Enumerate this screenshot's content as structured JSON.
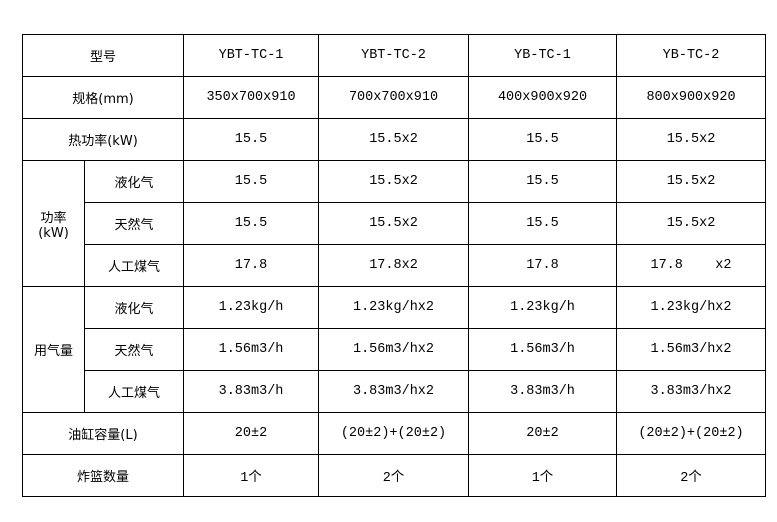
{
  "table": {
    "header": {
      "label": "型号",
      "models": [
        "YBT-TC-1",
        "YBT-TC-2",
        "YB-TC-1",
        "YB-TC-2"
      ]
    },
    "rows": [
      {
        "label": "规格(mm)",
        "values": [
          "350x700x910",
          "700x700x910",
          "400x900x920",
          "800x900x920"
        ]
      },
      {
        "label": "热功率(kW)",
        "values": [
          "15.5",
          "15.5x2",
          "15.5",
          "15.5x2"
        ]
      }
    ],
    "groups": [
      {
        "label": "功率",
        "unit": "(kW)",
        "rows": [
          {
            "label": "液化气",
            "values": [
              "15.5",
              "15.5x2",
              "15.5",
              "15.5x2"
            ]
          },
          {
            "label": "天然气",
            "values": [
              "15.5",
              "15.5x2",
              "15.5",
              "15.5x2"
            ]
          },
          {
            "label": "人工煤气",
            "values": [
              "17.8",
              "17.8x2",
              "17.8",
              "17.8    x2"
            ]
          }
        ]
      },
      {
        "label": "用气量",
        "rows": [
          {
            "label": "液化气",
            "values": [
              "1.23kg/h",
              "1.23kg/hx2",
              "1.23kg/h",
              "1.23kg/hx2"
            ]
          },
          {
            "label": "天然气",
            "values": [
              "1.56m3/h",
              "1.56m3/hx2",
              "1.56m3/h",
              "1.56m3/hx2"
            ]
          },
          {
            "label": "人工煤气",
            "values": [
              "3.83m3/h",
              "3.83m3/hx2",
              "3.83m3/h",
              "3.83m3/hx2"
            ]
          }
        ]
      }
    ],
    "footer_rows": [
      {
        "label": "油缸容量(L)",
        "values": [
          "20±2",
          "(20±2)+(20±2)",
          "20±2",
          "(20±2)+(20±2)"
        ]
      },
      {
        "label": "炸篮数量",
        "values": [
          "1个",
          "2个",
          "1个",
          "2个"
        ]
      }
    ]
  }
}
